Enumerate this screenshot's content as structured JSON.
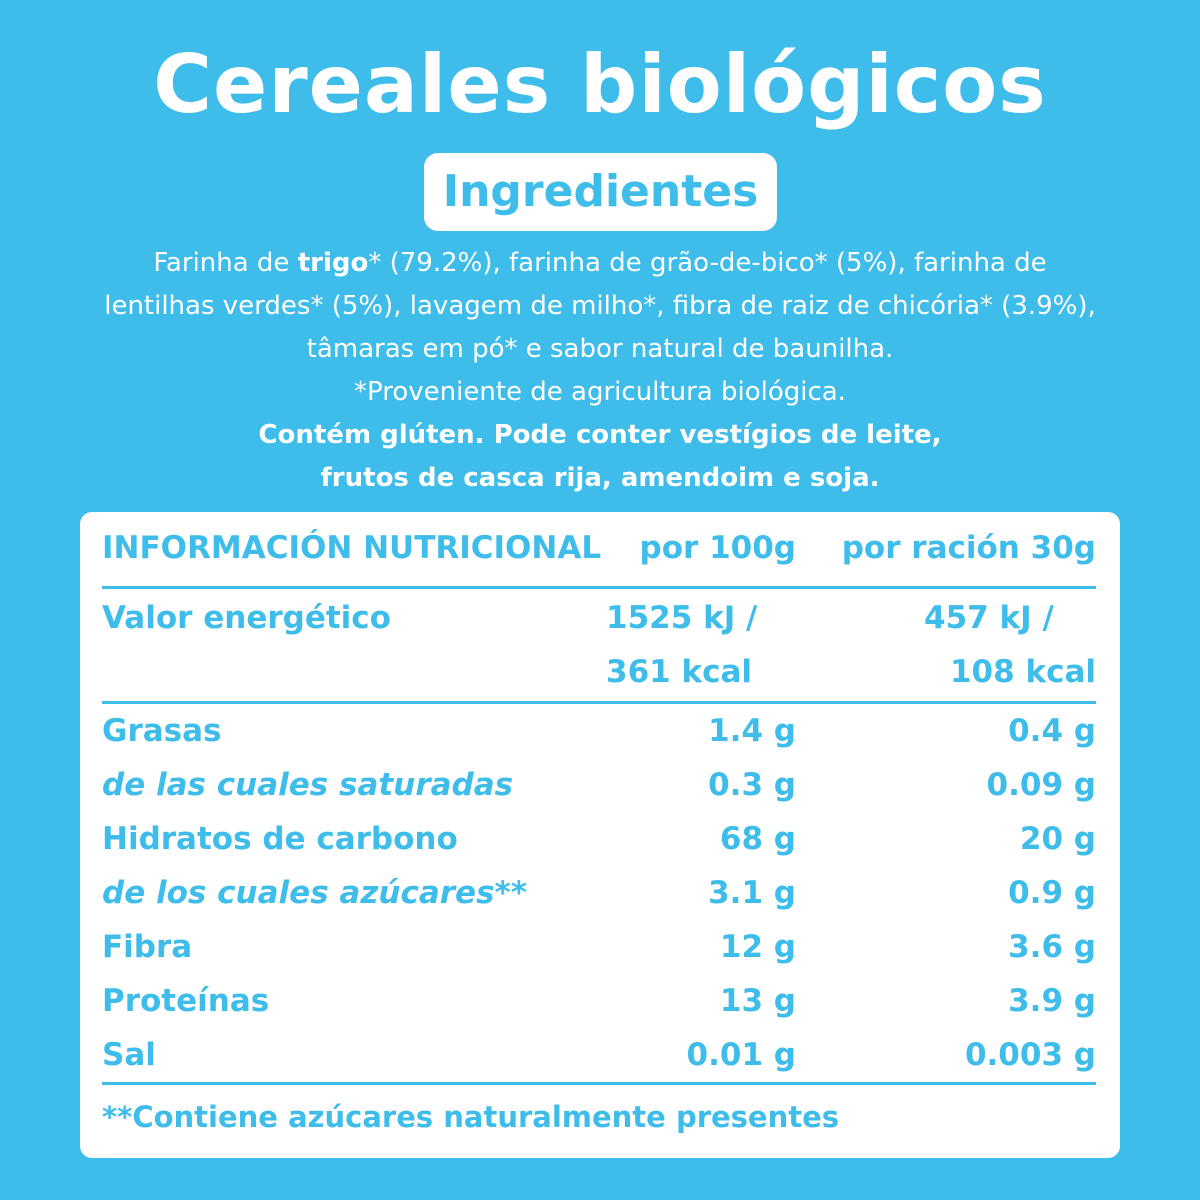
{
  "title": "Cereales biológicos",
  "ingredients_badge": "Ingredientes",
  "ingredients": {
    "part1": "Farinha de ",
    "part1_bold": "trigo",
    "part2": "* (79.2%), farinha de grão-de-bico* (5%), farinha de lentilhas verdes* (5%), lavagem de milho*, fibra de raiz de chicória* (3.9%), tâmaras em pó* e sabor natural de baunilha.",
    "organic_note": "*Proveniente de agricultura biológica.",
    "allergens_line1": "Contém glúten. Pode conter vestígios de leite,",
    "allergens_line2": "frutos de casca rija, amendoim e soja."
  },
  "nutrition": {
    "header": {
      "label": "INFORMACIÓN NUTRICIONAL",
      "per100": "por 100g",
      "perServing": "por ración 30g"
    },
    "energy": {
      "label": "Valor energético",
      "per100_kj": "1525 kJ /",
      "per100_kcal": "361 kcal",
      "serving_kj": "457 kJ /",
      "serving_kcal": "108 kcal"
    },
    "rows": [
      {
        "label": "Grasas",
        "per100": "1.4 g",
        "serving": "0.4 g"
      },
      {
        "label": "de las cuales saturadas",
        "per100": "0.3 g",
        "serving": "0.09 g"
      },
      {
        "label": "Hidratos de carbono",
        "per100": "68 g",
        "serving": "20 g"
      },
      {
        "label": "de los cuales azúcares**",
        "per100": "3.1 g",
        "serving": "0.9 g"
      },
      {
        "label": "Fibra",
        "per100": "12 g",
        "serving": "3.6 g"
      },
      {
        "label": "Proteínas",
        "per100": "13 g",
        "serving": "3.9 g"
      },
      {
        "label": "Sal",
        "per100": "0.01 g",
        "serving": "0.003 g"
      }
    ],
    "footnote": "**Contiene azúcares naturalmente presentes"
  },
  "colors": {
    "background": "#3ebdea",
    "card": "#ffffff",
    "accent": "#3ebdea"
  }
}
